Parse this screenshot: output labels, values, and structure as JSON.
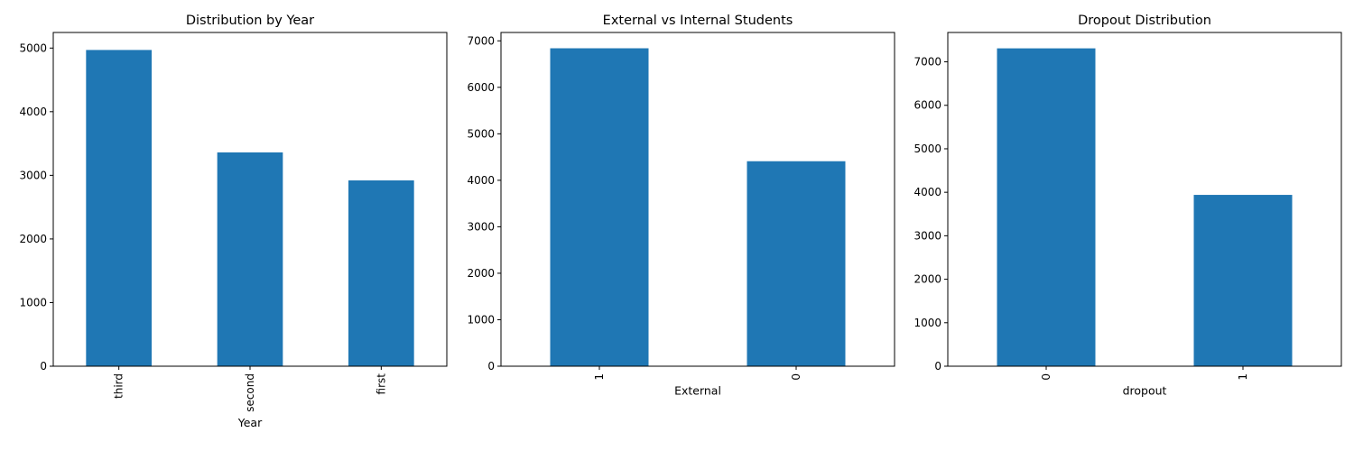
{
  "chart_data": [
    {
      "type": "bar",
      "title": "Distribution by Year",
      "xlabel": "Year",
      "ylabel": "",
      "categories": [
        "third",
        "second",
        "first"
      ],
      "values": [
        4970,
        3360,
        2920
      ],
      "ylim": [
        0,
        5245
      ],
      "yticks": [
        0,
        1000,
        2000,
        3000,
        4000,
        5000
      ],
      "color": "#1f77b4",
      "grid": false,
      "legend": "none"
    },
    {
      "type": "bar",
      "title": "External vs Internal Students",
      "xlabel": "External",
      "ylabel": "",
      "categories": [
        "1",
        "0"
      ],
      "values": [
        6840,
        4410
      ],
      "ylim": [
        0,
        7180
      ],
      "yticks": [
        0,
        1000,
        2000,
        3000,
        4000,
        5000,
        6000,
        7000
      ],
      "color": "#1f77b4",
      "grid": false,
      "legend": "none"
    },
    {
      "type": "bar",
      "title": "Dropout Distribution",
      "xlabel": "dropout",
      "ylabel": "",
      "categories": [
        "0",
        "1"
      ],
      "values": [
        7310,
        3940
      ],
      "ylim": [
        0,
        7675
      ],
      "yticks": [
        0,
        1000,
        2000,
        3000,
        4000,
        5000,
        6000,
        7000
      ],
      "color": "#1f77b4",
      "grid": false,
      "legend": "none"
    }
  ]
}
